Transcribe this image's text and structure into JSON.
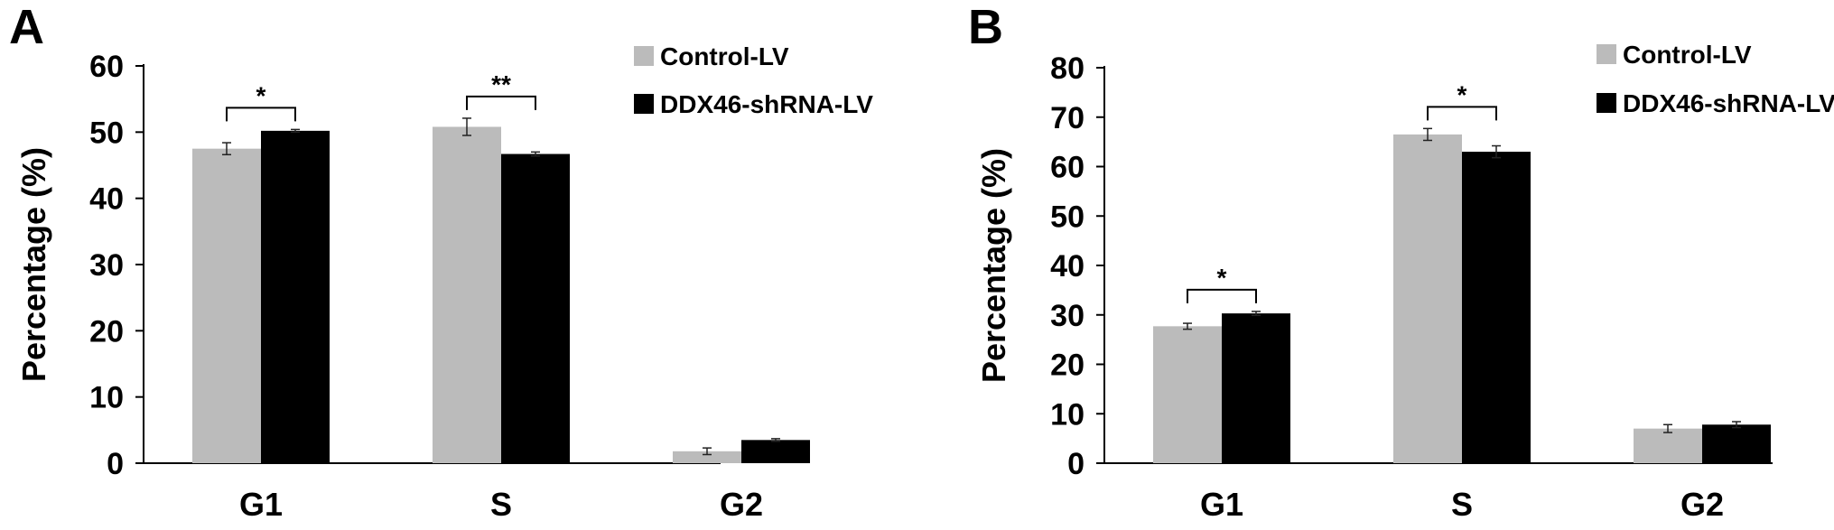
{
  "chart_data": [
    {
      "type": "bar",
      "panel_label": "A",
      "ylabel": "Percentage (%)",
      "categories": [
        "G1",
        "S",
        "G2"
      ],
      "ylim": [
        0,
        60
      ],
      "yticks": [
        "0",
        "10",
        "20",
        "30",
        "40",
        "50",
        "60"
      ],
      "series": [
        {
          "name": "Control-LV",
          "color": "#bbbbbb",
          "values": [
            47.5,
            50.8,
            1.8
          ],
          "errors": [
            0.9,
            1.3,
            0.5
          ]
        },
        {
          "name": "DDX46-shRNA-LV",
          "color": "#000000",
          "values": [
            50.2,
            46.7,
            3.5
          ],
          "errors": [
            0.2,
            0.3,
            0.2
          ]
        }
      ],
      "significance": [
        {
          "category": "G1",
          "label": "*"
        },
        {
          "category": "S",
          "label": "**"
        }
      ],
      "legend_position": "top-right",
      "grid": false
    },
    {
      "type": "bar",
      "panel_label": "B",
      "ylabel": "Percentage (%)",
      "categories": [
        "G1",
        "S",
        "G2"
      ],
      "ylim": [
        0,
        80
      ],
      "yticks": [
        "0",
        "10",
        "20",
        "30",
        "40",
        "50",
        "60",
        "70",
        "80"
      ],
      "series": [
        {
          "name": "Control-LV",
          "color": "#bbbbbb",
          "values": [
            27.7,
            66.5,
            7.0
          ],
          "errors": [
            0.6,
            1.2,
            0.8
          ]
        },
        {
          "name": "DDX46-shRNA-LV",
          "color": "#000000",
          "values": [
            30.3,
            63.0,
            7.8
          ],
          "errors": [
            0.4,
            1.2,
            0.6
          ]
        }
      ],
      "significance": [
        {
          "category": "G1",
          "label": "*"
        },
        {
          "category": "S",
          "label": "*"
        }
      ],
      "legend_position": "top-right",
      "grid": false
    }
  ]
}
